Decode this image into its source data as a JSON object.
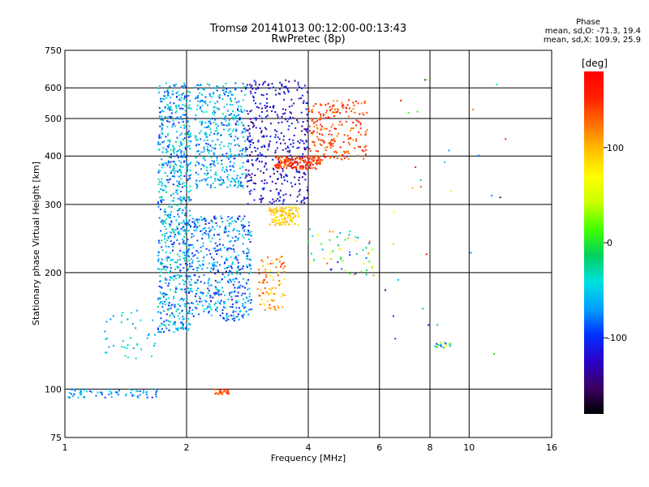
{
  "header": {
    "title_line1": "Tromsø 20141013 00:12:00-00:13:43",
    "title_line2": "RwPretec (8p)"
  },
  "phase_info": {
    "title": "Phase",
    "line_o": "mean, sd,O: -71.3, 19.4",
    "line_x": "mean, sd,X: 109.9, 25.9"
  },
  "colorbar": {
    "unit_label": "[deg]",
    "tick_labels": [
      "100",
      "0",
      "-100"
    ],
    "tick_values": [
      100,
      0,
      -100
    ],
    "range": [
      -180,
      180
    ],
    "palette": [
      "#000000",
      "#3c0064",
      "#2a00c8",
      "#0030ff",
      "#00a0ff",
      "#00e0e0",
      "#00d060",
      "#40ff00",
      "#c8ff00",
      "#ffff00",
      "#ffc000",
      "#ff7000",
      "#ff2000",
      "#ff0000"
    ]
  },
  "chart_data": {
    "type": "scatter",
    "title": "Tromsø 20141013 00:12:00-00:13:43",
    "subtitle": "RwPretec (8p)",
    "xlabel": "Frequency [MHz]",
    "ylabel": "Stationary phase Virtual Height [km]",
    "xscale": "log",
    "yscale": "log",
    "xlim": [
      1,
      16
    ],
    "ylim": [
      75,
      750
    ],
    "x_ticks": [
      1,
      2,
      4,
      6,
      8,
      10,
      16
    ],
    "x_tick_labels": [
      "1",
      "2",
      "4",
      "6",
      "8",
      "10",
      "16"
    ],
    "y_ticks": [
      75,
      100,
      200,
      300,
      400,
      500,
      600,
      750
    ],
    "y_tick_labels": [
      "75",
      "100",
      "200",
      "300",
      "400",
      "500",
      "600",
      "750"
    ],
    "x_gridlines": [
      2,
      4,
      6,
      8,
      10
    ],
    "y_gridlines": [
      100,
      200,
      300,
      400,
      500,
      600
    ],
    "color_variable": "Phase [deg]",
    "color_range": [
      -180,
      180
    ],
    "clusters": [
      {
        "f": [
          1.7,
          2.05
        ],
        "h": [
          140,
          620
        ],
        "phase": [
          -105,
          -20
        ],
        "n": 750
      },
      {
        "f": [
          2.0,
          2.9
        ],
        "h": [
          150,
          280
        ],
        "phase": [
          -115,
          -40
        ],
        "n": 500
      },
      {
        "f": [
          2.1,
          2.8
        ],
        "h": [
          330,
          620
        ],
        "phase": [
          -100,
          -25
        ],
        "n": 400
      },
      {
        "f": [
          2.8,
          4.0
        ],
        "h": [
          300,
          630
        ],
        "phase": [
          -145,
          -95
        ],
        "n": 400
      },
      {
        "f": [
          3.3,
          4.3
        ],
        "h": [
          370,
          400
        ],
        "phase": [
          120,
          175
        ],
        "n": 160
      },
      {
        "f": [
          4.0,
          5.6
        ],
        "h": [
          390,
          560
        ],
        "phase": [
          110,
          170
        ],
        "n": 220
      },
      {
        "f": [
          3.2,
          3.8
        ],
        "h": [
          265,
          295
        ],
        "phase": [
          70,
          110
        ],
        "n": 120
      },
      {
        "f": [
          3.0,
          3.5
        ],
        "h": [
          160,
          220
        ],
        "phase": [
          70,
          150
        ],
        "n": 90
      },
      {
        "f": [
          4.0,
          5.8
        ],
        "h": [
          195,
          260
        ],
        "phase": [
          -130,
          140
        ],
        "n": 60
      },
      {
        "f": [
          1.02,
          1.7
        ],
        "h": [
          95,
          100
        ],
        "phase": [
          -100,
          -40
        ],
        "n": 70
      },
      {
        "f": [
          2.35,
          2.55
        ],
        "h": [
          97,
          100
        ],
        "phase": [
          120,
          160
        ],
        "n": 30
      },
      {
        "f": [
          1.25,
          1.7
        ],
        "h": [
          120,
          160
        ],
        "phase": [
          -70,
          -30
        ],
        "n": 40
      },
      {
        "f": [
          8.2,
          9.0
        ],
        "h": [
          128,
          132
        ],
        "phase": [
          -140,
          90
        ],
        "n": 20
      },
      {
        "f": [
          6.0,
          12.5
        ],
        "h": [
          105,
          640
        ],
        "phase": [
          -150,
          170
        ],
        "n": 30
      }
    ]
  }
}
